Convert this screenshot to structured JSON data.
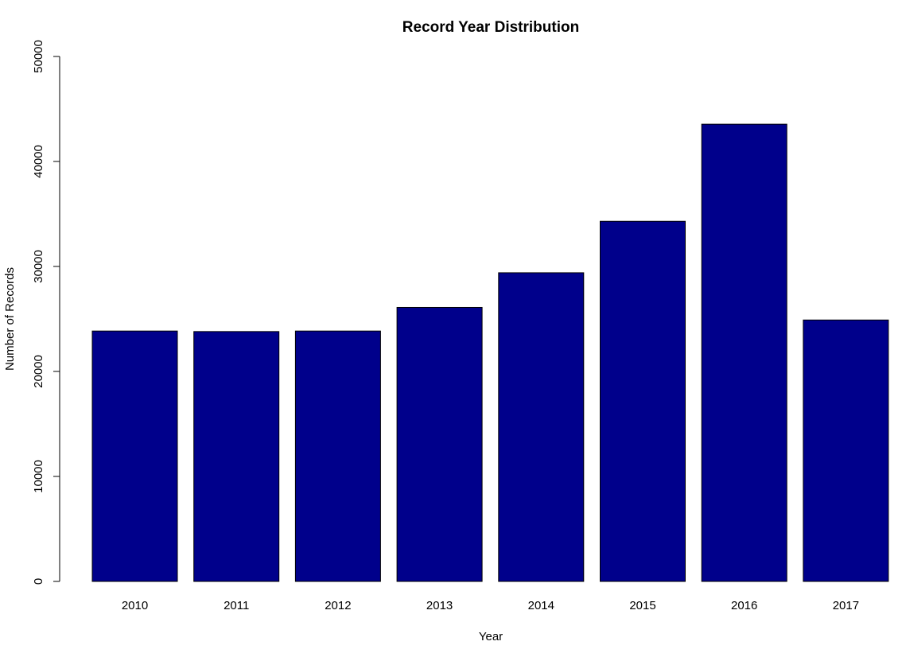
{
  "chart_data": {
    "type": "bar",
    "title": "Record Year Distribution",
    "xlabel": "Year",
    "ylabel": "Number of Records",
    "categories": [
      "2010",
      "2011",
      "2012",
      "2013",
      "2014",
      "2015",
      "2016",
      "2017"
    ],
    "values": [
      23850,
      23800,
      23850,
      26100,
      29400,
      34300,
      43550,
      24900
    ],
    "ylim": [
      0,
      50000
    ],
    "yticks": [
      0,
      10000,
      20000,
      30000,
      40000,
      50000
    ],
    "ytick_labels": [
      "0",
      "10000",
      "20000",
      "30000",
      "40000",
      "50000"
    ],
    "bar_color": "#00008B",
    "bar_border_color": "#000000",
    "grid": false,
    "legend": "none"
  }
}
